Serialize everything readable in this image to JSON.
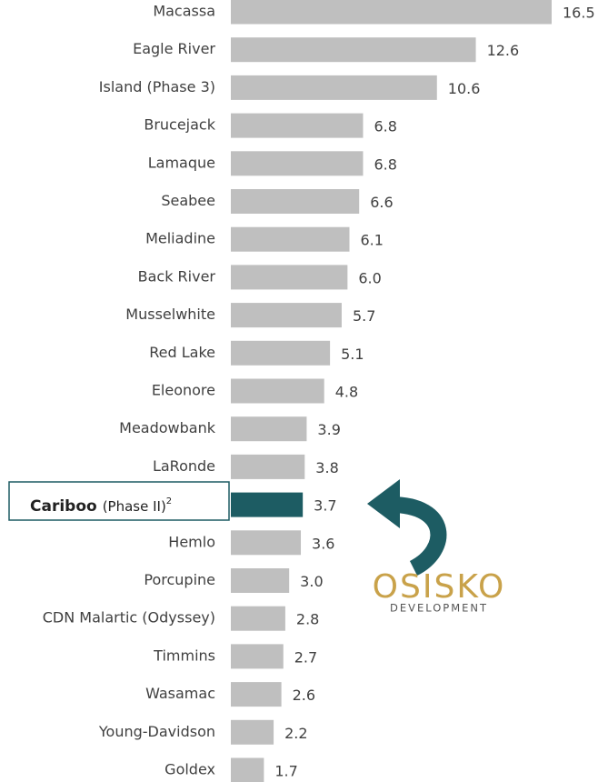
{
  "chart_data": {
    "type": "bar",
    "orientation": "horizontal",
    "categories": [
      "Macassa",
      "Eagle River",
      "Island (Phase 3)",
      "Brucejack",
      "Lamaque",
      "Seabee",
      "Meliadine",
      "Back River",
      "Musselwhite",
      "Red Lake",
      "Eleonore",
      "Meadowbank",
      "LaRonde",
      "Cariboo",
      "Hemlo",
      "Porcupine",
      "CDN Malartic (Odyssey)",
      "Timmins",
      "Wasamac",
      "Young-Davidson",
      "Goldex"
    ],
    "values": [
      16.5,
      12.6,
      10.6,
      6.8,
      6.8,
      6.6,
      6.1,
      6.0,
      5.7,
      5.1,
      4.8,
      3.9,
      3.8,
      3.7,
      3.6,
      3.0,
      2.8,
      2.7,
      2.6,
      2.2,
      1.7
    ],
    "value_labels": [
      "16.5",
      "12.6",
      "10.6",
      "6.8",
      "6.8",
      "6.6",
      "6.1",
      "6.0",
      "5.7",
      "5.1",
      "4.8",
      "3.9",
      "3.8",
      "3.7",
      "3.6",
      "3.0",
      "2.8",
      "2.7",
      "2.6",
      "2.2",
      "1.7"
    ],
    "color": "#bfbfbf",
    "xlim": [
      0,
      16.5
    ],
    "highlight": {
      "index": 13,
      "detail": "(Phase II)",
      "footnote": "2",
      "color": "#1d5c63"
    },
    "logo": {
      "name": "OSISKO",
      "tagline": "DEVELOPMENT"
    }
  }
}
